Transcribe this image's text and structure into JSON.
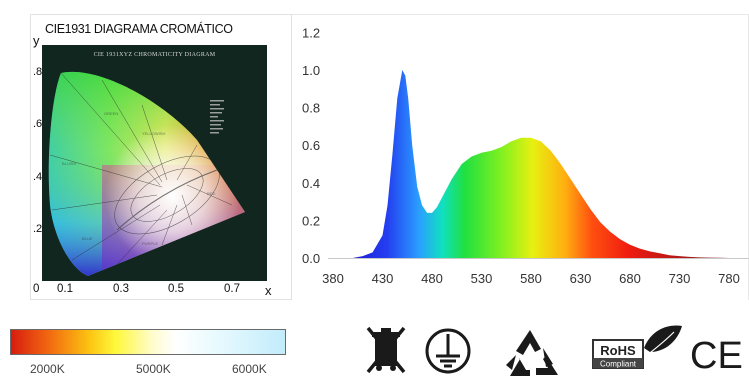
{
  "cie_diagram": {
    "title": "CIE1931 DIAGRAMA CROMÁTICO",
    "inner_title": "CIE 1931XYZ CHROMATICITY DIAGRAM",
    "y_axis_label": "y",
    "x_axis_label": "x",
    "y_ticks": [
      ".8",
      ".6",
      ".4",
      ".2"
    ],
    "x_ticks": [
      "0",
      "0.1",
      "0.3",
      "0.5",
      "0.7"
    ]
  },
  "chart_data": {
    "type": "area",
    "title": "",
    "xlabel": "",
    "ylabel": "",
    "xlim": [
      355,
      800
    ],
    "ylim": [
      0,
      1.2
    ],
    "x_ticks": [
      "380",
      "430",
      "480",
      "530",
      "580",
      "630",
      "680",
      "730",
      "780"
    ],
    "y_ticks": [
      "0.0",
      "0.2",
      "0.4",
      "0.6",
      "0.8",
      "1.0",
      "1.2"
    ],
    "grid": false,
    "series": [
      {
        "x": [
          380,
          400,
          410,
          420,
          430,
          435,
          440,
          445,
          450,
          453,
          456,
          460,
          465,
          470,
          475,
          480,
          485,
          490,
          500,
          510,
          520,
          530,
          540,
          550,
          560,
          570,
          580,
          590,
          600,
          610,
          620,
          630,
          640,
          650,
          660,
          670,
          680,
          690,
          700,
          710,
          720,
          730,
          740,
          750,
          760,
          770,
          780
        ],
        "y": [
          0.0,
          0.0,
          0.01,
          0.03,
          0.12,
          0.28,
          0.55,
          0.85,
          1.0,
          0.97,
          0.85,
          0.6,
          0.38,
          0.28,
          0.24,
          0.24,
          0.27,
          0.32,
          0.42,
          0.5,
          0.54,
          0.56,
          0.57,
          0.59,
          0.62,
          0.64,
          0.64,
          0.62,
          0.57,
          0.5,
          0.42,
          0.34,
          0.26,
          0.19,
          0.14,
          0.1,
          0.07,
          0.05,
          0.035,
          0.025,
          0.015,
          0.01,
          0.006,
          0.003,
          0.002,
          0.001,
          0.0
        ]
      }
    ]
  },
  "color_temperature_bar": {
    "labels": [
      "2000K",
      "5000K",
      "6000K"
    ]
  },
  "certifications": [
    "no-trash-bin-icon",
    "ground-symbol-icon",
    "recycle-icon",
    "rohs-compliant-icon",
    "ce-mark-icon"
  ],
  "rohs": {
    "title": "RoHS",
    "subtitle": "Compliant"
  },
  "ce_mark": "CE"
}
